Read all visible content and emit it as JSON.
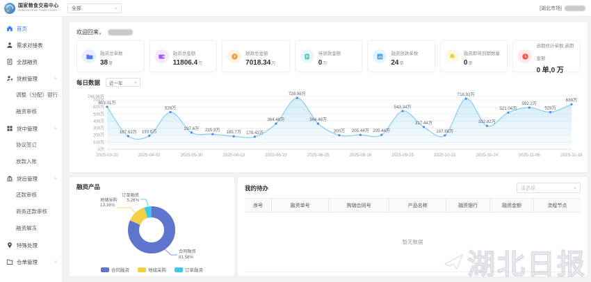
{
  "header": {
    "brand_title": "国家粮食交易中心",
    "brand_subtitle": "National Grain Trade Center",
    "market_select": "全部",
    "market_tag": "[湖北市场]"
  },
  "sidebar": {
    "items": [
      {
        "label": "首页",
        "icon": "home-icon",
        "active": true,
        "children": []
      },
      {
        "label": "需求对接表",
        "icon": "person-icon",
        "children": []
      },
      {
        "label": "全部融资",
        "icon": "document-icon",
        "children": []
      },
      {
        "label": "贷前管理",
        "icon": "loan-pre-icon",
        "expanded": true,
        "children": [
          "调整（分配）银行",
          "融资审核"
        ]
      },
      {
        "label": "贷中管理",
        "icon": "loan-mid-icon",
        "expanded": true,
        "children": [
          "协议签订",
          "放款入账"
        ]
      },
      {
        "label": "贷后管理",
        "icon": "loan-post-icon",
        "expanded": true,
        "children": [
          "还款审核",
          "商务还款审核",
          "融资解冻"
        ]
      },
      {
        "label": "特殊处理",
        "icon": "pin-icon",
        "children": []
      },
      {
        "label": "仓单管理",
        "icon": "folder-icon",
        "expanded": false,
        "children": []
      }
    ]
  },
  "welcome": {
    "greeting": "欢迎回来，"
  },
  "stats": [
    {
      "label": "融资总单数",
      "value": "38",
      "unit": "单",
      "color": "#4e7cf0",
      "icon": "stat-folder-icon"
    },
    {
      "label": "融资总金额",
      "value": "11806.4",
      "unit": "万",
      "color": "#a05ce6",
      "icon": "stat-wallet-icon"
    },
    {
      "label": "放款总金额",
      "value": "7018.34",
      "unit": "万",
      "color": "#f59a3e",
      "icon": "stat-coin-icon"
    },
    {
      "label": "待放款金额",
      "value": "0",
      "unit": "万",
      "color": "#49c7c0",
      "icon": "stat-doc-icon"
    },
    {
      "label": "融资放款单数",
      "value": "24",
      "unit": "单",
      "color": "#3fa9f5",
      "icon": "stat-chart-icon"
    },
    {
      "label": "融资即将到期数量",
      "value": "0",
      "unit": "单",
      "color": "#f2ce3c",
      "icon": "stat-bell-icon"
    },
    {
      "label": "逾期统计单数,逾期金额",
      "value": "0 单,0 万",
      "unit": "",
      "color": "#ee5a52",
      "icon": "stat-clock-icon"
    }
  ],
  "daily": {
    "title": "每日数据",
    "range_select": "近一年"
  },
  "products": {
    "title": "融资产品"
  },
  "todo": {
    "title": "我的待办",
    "filter_placeholder": "请选择",
    "columns": [
      "序号",
      "融资单号",
      "购销合同号",
      "产品名称",
      "融资银行",
      "融资金额",
      "流程节点"
    ],
    "empty_text": "暂无数据"
  },
  "watermark": {
    "text": "湖北日报"
  },
  "chart_data": [
    {
      "type": "line",
      "title": "每日数据",
      "unit": "万",
      "values": [
        603.01,
        187.63,
        193.6,
        528,
        237.6,
        215.9,
        185.7,
        178.43,
        364.48,
        728.96,
        364.48,
        200,
        205.44,
        205.44,
        543.34,
        317.44,
        197.88,
        718.92,
        332.82,
        521.04,
        592.2,
        528,
        639
      ],
      "point_labels": [
        "603.01万",
        "187.63万",
        "193.6万",
        "528万",
        "237.6万",
        "215.9万",
        "185.7万",
        "178.43万",
        "364.48万",
        "728.96万",
        "364.48万",
        "200万",
        "205.44万",
        "205.44万",
        "543.34万",
        "317.44万",
        "197.88万",
        "718.92万",
        "332.82万",
        "521.04万",
        "592.2万",
        "528万",
        "639万"
      ],
      "x_tick_labels": [
        "2025-03-20",
        "2025-04-02",
        "2025-05-30",
        "2025-06-13",
        "2025-06-23",
        "2025-06-25",
        "2025-08-18",
        "2025-09-25",
        "2025-10-22",
        "2025-10-24",
        "2025-11-06",
        "2025-11-18"
      ],
      "x_tick_every": 2,
      "ylim": [
        0,
        748.96
      ],
      "y_ticks": [
        0,
        100,
        200,
        300,
        400,
        500,
        600,
        700,
        748.96
      ],
      "y_tick_labels": [
        "0万",
        "100万",
        "200万",
        "300万",
        "400万",
        "500万",
        "600万",
        "700万",
        "748.96万"
      ],
      "grid": true,
      "legend_position": "none",
      "line_color": "#8fd0ef",
      "point_color": "#4e86ec",
      "area_color_top": "rgba(143,208,239,0.40)",
      "area_color_bottom": "rgba(143,208,239,0.04)"
    },
    {
      "type": "pie",
      "title": "融资产品",
      "slices": [
        {
          "name": "合同融资",
          "pct": 81.58,
          "color": "#5f74cc"
        },
        {
          "name": "地储采购",
          "pct": 13.16,
          "color": "#f4cf45"
        },
        {
          "name": "订单融资",
          "pct": 5.26,
          "color": "#3ec7e6"
        }
      ],
      "legend": [
        "合同融资",
        "地储采购",
        "订单融资"
      ],
      "legend_position": "bottom"
    }
  ]
}
